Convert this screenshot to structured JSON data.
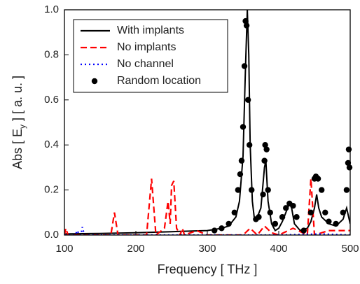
{
  "chart_data": {
    "type": "line",
    "xlabel": "Frequency [ THz ]",
    "ylabel": {
      "main": "Abs [ E",
      "sub": "y",
      "tail": " ] [ a. u. ]"
    },
    "xlim": [
      100,
      500
    ],
    "ylim": [
      0,
      1
    ],
    "xticks": [
      100,
      200,
      300,
      400,
      500
    ],
    "yticks": [
      {
        "value": 0,
        "label": "0.0"
      },
      0.2,
      0.4,
      0.6,
      0.8,
      {
        "value": 1,
        "label": "1.0"
      }
    ],
    "legend": "upper left",
    "series": [
      {
        "name": "With implants",
        "color": "#000000",
        "style": "solid",
        "x": [
          100,
          150,
          200,
          250,
          300,
          320,
          330,
          340,
          345,
          350,
          353,
          356,
          358,
          360,
          363,
          366,
          370,
          375,
          380,
          382,
          385,
          390,
          395,
          400,
          405,
          410,
          415,
          418,
          422,
          430,
          440,
          445,
          450,
          453,
          456,
          460,
          470,
          480,
          490,
          495,
          500
        ],
        "values": [
          0.005,
          0.007,
          0.01,
          0.015,
          0.02,
          0.03,
          0.04,
          0.08,
          0.15,
          0.35,
          0.7,
          1.0,
          0.8,
          0.4,
          0.15,
          0.07,
          0.08,
          0.12,
          0.3,
          0.33,
          0.15,
          0.05,
          0.02,
          0.03,
          0.06,
          0.1,
          0.14,
          0.12,
          0.05,
          0.02,
          0.03,
          0.06,
          0.12,
          0.18,
          0.12,
          0.08,
          0.05,
          0.04,
          0.07,
          0.12,
          0.05
        ]
      },
      {
        "name": "No implants",
        "color": "#ff0000",
        "style": "dashed",
        "x": [
          100,
          102,
          105,
          165,
          170,
          175,
          215,
          222,
          228,
          240,
          245,
          248,
          250,
          253,
          257,
          262,
          265,
          268,
          285,
          300,
          350,
          360,
          370,
          380,
          390,
          400,
          420,
          440,
          445,
          450,
          470,
          500
        ],
        "values": [
          0,
          0.03,
          0,
          0,
          0.1,
          0,
          0,
          0.25,
          0,
          0.03,
          0.15,
          0.05,
          0.22,
          0.24,
          0.03,
          0,
          0.03,
          0,
          0.02,
          0,
          0,
          0.03,
          0,
          0.04,
          0.01,
          0,
          0.03,
          0,
          0.25,
          0,
          0.02,
          0.02
        ]
      },
      {
        "name": "No channel",
        "color": "#0000ff",
        "style": "dotted",
        "x": [
          100,
          115,
          118,
          121,
          123,
          125,
          128,
          200,
          300,
          400,
          460,
          500
        ],
        "values": [
          0,
          0,
          0.02,
          0,
          0,
          0.035,
          0,
          0,
          0,
          0,
          0.005,
          0
        ]
      },
      {
        "name": "Random location",
        "color": "#000000",
        "style": "markers",
        "x": [
          310,
          320,
          330,
          338,
          343,
          346,
          348,
          350,
          352,
          353.5,
          355,
          357,
          359,
          362,
          368,
          372,
          378,
          380,
          381,
          383,
          385,
          388,
          395,
          405,
          410,
          415,
          420,
          425,
          435,
          445,
          450,
          452,
          455,
          460,
          465,
          470,
          480,
          490,
          495,
          497,
          498,
          499
        ],
        "values": [
          0.02,
          0.03,
          0.05,
          0.1,
          0.2,
          0.27,
          0.33,
          0.48,
          0.75,
          0.95,
          0.93,
          0.6,
          0.4,
          0.2,
          0.07,
          0.08,
          0.18,
          0.33,
          0.4,
          0.38,
          0.2,
          0.1,
          0.05,
          0.08,
          0.12,
          0.14,
          0.13,
          0.08,
          0.02,
          0.1,
          0.25,
          0.26,
          0.25,
          0.2,
          0.1,
          0.06,
          0.05,
          0.1,
          0.2,
          0.32,
          0.38,
          0.3
        ]
      }
    ]
  }
}
